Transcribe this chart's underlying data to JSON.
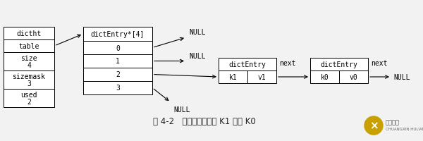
{
  "bg_color": "#f2f2f2",
  "title": "图 4-2   连接在一起的键 K1 和键 K0",
  "font_family": "monospace",
  "box_color": "#ffffff",
  "box_edge": "#000000",
  "dictht_rows": [
    "dictht",
    "table",
    "size\n4",
    "sizemask\n3",
    "used\n2"
  ],
  "table_rows": [
    "0",
    "1",
    "2",
    "3"
  ],
  "table_header": "dictEntry*[4]",
  "entry1_header": "dictEntry",
  "entry1_cells": [
    "k1",
    "v1"
  ],
  "entry2_header": "dictEntry",
  "entry2_cells": [
    "k0",
    "v0"
  ],
  "null_label": "NULL",
  "next_label": "next"
}
